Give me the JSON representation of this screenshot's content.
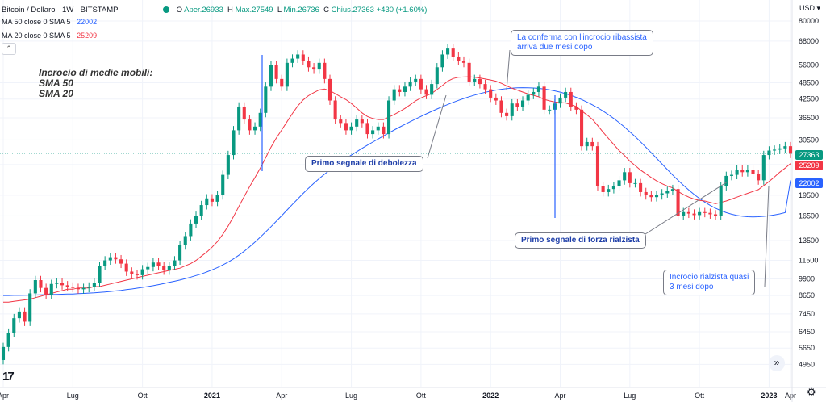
{
  "header": {
    "title": "Bitcoin / Dollaro · 1W · BITSTAMP",
    "open_label": "O",
    "open": "Aper.26933",
    "high_label": "H",
    "high": "Max.27549",
    "low_label": "L",
    "low": "Min.26736",
    "close_label": "C",
    "close": "Chius.27363",
    "change": "+430 (+1.60%)"
  },
  "indicators": {
    "ma50_label": "MA 50 close 0 SMA 5",
    "ma50_value": "22002",
    "ma20_label": "MA 20 close 0 SMA 5",
    "ma20_value": "25209",
    "collapse_icon": "chevron-up-icon"
  },
  "annotations": {
    "title_line1": "Incrocio di medie mobili:",
    "title_line2": "SMA 50",
    "title_line3": "SMA 20",
    "callout1_line1": "La conferma con l'incrocio ribassista",
    "callout1_line2": "arriva due mesi dopo",
    "callout2": "Primo segnale di debolezza",
    "callout3": "Primo segnale di forza rialzista",
    "callout4_line1": "Incrocio rialzista quasi",
    "callout4_line2": "3 mesi dopo"
  },
  "axis": {
    "currency": "USD",
    "price_badge": "27363",
    "ma20_badge": "25209",
    "ma50_badge": "22002",
    "price_ticks": [
      "80000",
      "68000",
      "56000",
      "48500",
      "42500",
      "36500",
      "30500",
      "25000",
      "19500",
      "16500",
      "13500",
      "11500",
      "9900",
      "8650",
      "7450",
      "6450",
      "5650",
      "4950"
    ],
    "time_ticks": [
      "Apr",
      "Lug",
      "Ott",
      "2021",
      "Apr",
      "Lug",
      "Ott",
      "2022",
      "Apr",
      "Lug",
      "Ott",
      "2023",
      "Apr"
    ]
  },
  "colors": {
    "up": "#089981",
    "down": "#f23645",
    "ma50": "#2962ff",
    "ma20": "#f23645",
    "grid": "#f0f3fa"
  },
  "chart_data": {
    "type": "candlestick",
    "scale": "log",
    "ylim": [
      4500,
      90000
    ],
    "closes": [
      5700,
      6400,
      7200,
      7600,
      7000,
      8800,
      9800,
      9200,
      8700,
      9500,
      9600,
      9400,
      9300,
      9200,
      9100,
      9200,
      9300,
      9600,
      11000,
      11500,
      11800,
      11600,
      11200,
      10500,
      10300,
      10200,
      10700,
      10900,
      11300,
      11000,
      10600,
      11000,
      11500,
      13000,
      14000,
      15500,
      16500,
      18000,
      19000,
      18500,
      19500,
      23000,
      27000,
      33000,
      40000,
      36000,
      33000,
      34000,
      38000,
      47000,
      56000,
      50000,
      47000,
      57000,
      59000,
      61000,
      58000,
      55000,
      54000,
      57000,
      50000,
      42000,
      36000,
      35000,
      33000,
      34000,
      36000,
      35000,
      32000,
      33000,
      34000,
      32000,
      42000,
      46000,
      45000,
      47000,
      49000,
      50000,
      46000,
      44000,
      48000,
      55000,
      61000,
      64000,
      60000,
      58000,
      57000,
      49000,
      50000,
      48000,
      46000,
      43000,
      42000,
      38000,
      37000,
      41000,
      40000,
      42000,
      44000,
      45000,
      47000,
      39000,
      39000,
      41000,
      43000,
      45000,
      40000,
      39000,
      29000,
      30000,
      29000,
      21000,
      20000,
      20500,
      21000,
      22000,
      23500,
      21500,
      21500,
      20000,
      19500,
      19200,
      19500,
      19800,
      20200,
      20500,
      16500,
      17000,
      16800,
      16600,
      17000,
      16900,
      16700,
      16500,
      21000,
      22800,
      23000,
      24000,
      23500,
      24000,
      23200,
      22000,
      27000,
      28000,
      28200,
      28500,
      29000,
      27300
    ],
    "ma20": [
      8200,
      8200,
      8250,
      8300,
      8350,
      8400,
      8500,
      8600,
      8700,
      8800,
      8900,
      9000,
      9100,
      9100,
      9200,
      9200,
      9200,
      9300,
      9300,
      9400,
      9500,
      9600,
      9700,
      9800,
      9900,
      10000,
      10100,
      10200,
      10300,
      10400,
      10500,
      10600,
      10700,
      10800,
      11000,
      11200,
      11500,
      11900,
      12300,
      12800,
      13400,
      14200,
      15200,
      16400,
      17800,
      19300,
      20900,
      22500,
      24300,
      26400,
      28800,
      31000,
      33100,
      35400,
      37800,
      40200,
      42200,
      43700,
      44800,
      45800,
      46100,
      45500,
      44400,
      43300,
      42300,
      41000,
      39500,
      38000,
      36900,
      36300,
      36000,
      36000,
      36700,
      37500,
      38400,
      39400,
      40600,
      41900,
      42900,
      43700,
      44500,
      45900,
      47400,
      49100,
      50200,
      50700,
      50800,
      50900,
      50700,
      50400,
      50000,
      49600,
      49100,
      48300,
      47300,
      46400,
      45700,
      45000,
      44300,
      43800,
      43300,
      42400,
      41900,
      41500,
      41300,
      41200,
      40600,
      40000,
      38600,
      37400,
      36100,
      34300,
      32500,
      30900,
      29400,
      28000,
      26900,
      25700,
      24800,
      23900,
      23200,
      22500,
      21900,
      21400,
      21000,
      20700,
      20100,
      19600,
      19200,
      18900,
      18700,
      18600,
      18400,
      18200,
      18400,
      18600,
      18900,
      19200,
      19500,
      19800,
      20100,
      20400,
      21100,
      21800,
      22600,
      23500,
      24300,
      25209
    ],
    "ma50": [
      8650,
      8650,
      8660,
      8660,
      8670,
      8680,
      8690,
      8700,
      8710,
      8720,
      8730,
      8740,
      8750,
      8760,
      8780,
      8800,
      8820,
      8840,
      8870,
      8900,
      8940,
      8980,
      9020,
      9070,
      9120,
      9180,
      9240,
      9300,
      9370,
      9450,
      9530,
      9620,
      9710,
      9810,
      9920,
      10040,
      10170,
      10310,
      10470,
      10650,
      10850,
      11080,
      11340,
      11640,
      11990,
      12390,
      12840,
      13340,
      13880,
      14470,
      15110,
      15800,
      16530,
      17300,
      18100,
      18930,
      19780,
      20630,
      21480,
      22320,
      23140,
      23940,
      24720,
      25490,
      26250,
      27000,
      27750,
      28500,
      29250,
      30000,
      30750,
      31520,
      32300,
      33080,
      33850,
      34620,
      35390,
      36160,
      36930,
      37700,
      38460,
      39210,
      39950,
      40670,
      41380,
      42060,
      42710,
      43320,
      43890,
      44420,
      44900,
      45320,
      45690,
      46000,
      46250,
      46430,
      46550,
      46600,
      46580,
      46490,
      46330,
      46100,
      45800,
      45420,
      44960,
      44420,
      43800,
      43100,
      42330,
      41490,
      40580,
      39600,
      38560,
      37460,
      36310,
      35110,
      33880,
      32620,
      31340,
      30050,
      28770,
      27510,
      26290,
      25120,
      24010,
      22970,
      22010,
      21130,
      20330,
      19620,
      18990,
      18440,
      17960,
      17550,
      17210,
      16930,
      16710,
      16550,
      16440,
      16380,
      16360,
      16380,
      16430,
      16510,
      16620,
      16760,
      16930,
      22002
    ]
  }
}
